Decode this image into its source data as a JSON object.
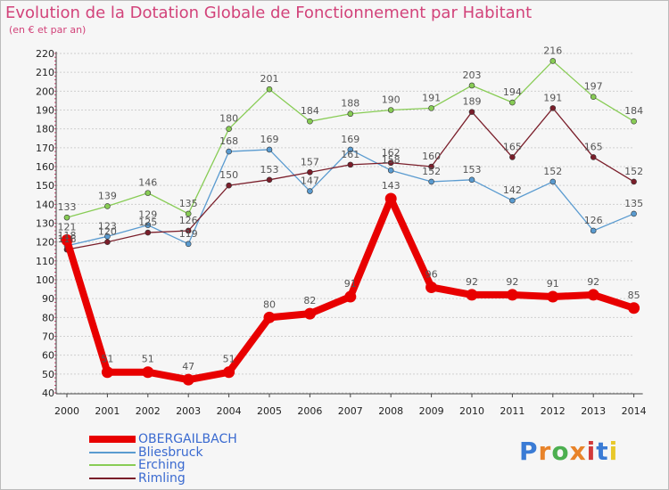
{
  "header": {
    "title": "Evolution de la Dotation Globale de Fonctionnement par Habitant",
    "subtitle": "(en € et par an)"
  },
  "logo": {
    "text": "Proxiti",
    "colors": [
      "#3a7bd5",
      "#e8832a",
      "#4caf50",
      "#e8832a",
      "#d23a3a",
      "#3a7bd5",
      "#e8c82a"
    ]
  },
  "chart_data": {
    "type": "line",
    "title": "Evolution de la Dotation Globale de Fonctionnement par Habitant",
    "subtitle": "(en € et par an)",
    "xlabel": "",
    "ylabel": "",
    "categories": [
      "2000",
      "2001",
      "2002",
      "2003",
      "2004",
      "2005",
      "2006",
      "2007",
      "2008",
      "2009",
      "2010",
      "2011",
      "2012",
      "2013",
      "2014"
    ],
    "ylim": [
      40,
      220
    ],
    "yticks": [
      40,
      50,
      60,
      70,
      80,
      90,
      100,
      110,
      120,
      130,
      140,
      150,
      160,
      170,
      180,
      190,
      200,
      210,
      220
    ],
    "grid": "horizontal",
    "legend_position": "bottom-left",
    "series": [
      {
        "name": "OBERGAILBACH",
        "color": "#e80000",
        "values": [
          121,
          51,
          51,
          47,
          51,
          80,
          82,
          91,
          143,
          96,
          92,
          92,
          91,
          92,
          85
        ]
      },
      {
        "name": "Bliesbruck",
        "color": "#5a9bd0",
        "values": [
          118,
          123,
          129,
          119,
          168,
          169,
          147,
          169,
          158,
          152,
          153,
          142,
          152,
          126,
          135
        ]
      },
      {
        "name": "Erching",
        "color": "#88cc55",
        "values": [
          133,
          139,
          146,
          135,
          180,
          201,
          184,
          188,
          190,
          191,
          203,
          194,
          216,
          197,
          184
        ]
      },
      {
        "name": "Rimling",
        "color": "#7a1e2a",
        "values": [
          116,
          120,
          125,
          126,
          150,
          153,
          157,
          161,
          162,
          160,
          189,
          165,
          191,
          165,
          152
        ]
      }
    ]
  }
}
